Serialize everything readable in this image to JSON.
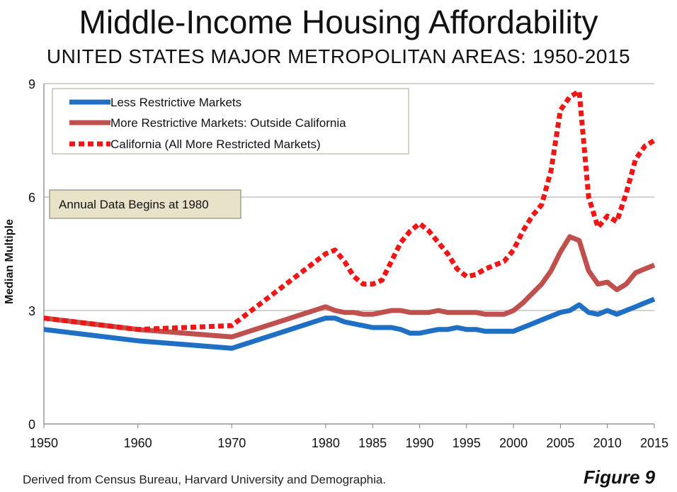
{
  "chart_data": {
    "type": "line",
    "title": "Middle-Income Housing Affordability",
    "subtitle": "UNITED STATES MAJOR METROPOLITAN AREAS: 1950-2015",
    "ylabel": "Median Multiple",
    "xlabel": "",
    "ylim": [
      0,
      9
    ],
    "yticks": [
      "0",
      "3",
      "6",
      "9"
    ],
    "xticks": [
      "1950",
      "1960",
      "1970",
      "1980",
      "1985",
      "1990",
      "1995",
      "2000",
      "2005",
      "2010",
      "2015"
    ],
    "grid": "horizontal",
    "legend_position": "top-left",
    "annotation": "Annual Data Begins at 1980",
    "source": "Derived from Census Bureau, Harvard University and Demographia.",
    "figure_label": "Figure 9",
    "series": [
      {
        "name": "Less Restrictive Markets",
        "color": "#1f6fc5",
        "style": "solid",
        "x": [
          1950,
          1960,
          1970,
          1980,
          1981,
          1982,
          1983,
          1984,
          1985,
          1986,
          1987,
          1988,
          1989,
          1990,
          1991,
          1992,
          1993,
          1994,
          1995,
          1996,
          1997,
          1998,
          1999,
          2000,
          2001,
          2002,
          2003,
          2004,
          2005,
          2006,
          2007,
          2008,
          2009,
          2010,
          2011,
          2012,
          2013,
          2014,
          2015
        ],
        "y": [
          2.5,
          2.2,
          2.0,
          2.8,
          2.8,
          2.7,
          2.65,
          2.6,
          2.55,
          2.55,
          2.55,
          2.5,
          2.4,
          2.4,
          2.45,
          2.5,
          2.5,
          2.55,
          2.5,
          2.5,
          2.45,
          2.45,
          2.45,
          2.45,
          2.55,
          2.65,
          2.75,
          2.85,
          2.95,
          3.0,
          3.15,
          2.95,
          2.9,
          3.0,
          2.9,
          3.0,
          3.1,
          3.2,
          3.3
        ]
      },
      {
        "name": "More Restrictive Markets: Outside California",
        "color": "#c0504d",
        "style": "solid",
        "x": [
          1950,
          1960,
          1970,
          1980,
          1981,
          1982,
          1983,
          1984,
          1985,
          1986,
          1987,
          1988,
          1989,
          1990,
          1991,
          1992,
          1993,
          1994,
          1995,
          1996,
          1997,
          1998,
          1999,
          2000,
          2001,
          2002,
          2003,
          2004,
          2005,
          2006,
          2007,
          2008,
          2009,
          2010,
          2011,
          2012,
          2013,
          2014,
          2015
        ],
        "y": [
          2.8,
          2.5,
          2.3,
          3.1,
          3.0,
          2.95,
          2.95,
          2.9,
          2.9,
          2.95,
          3.0,
          3.0,
          2.95,
          2.95,
          2.95,
          3.0,
          2.95,
          2.95,
          2.95,
          2.95,
          2.9,
          2.9,
          2.9,
          3.0,
          3.2,
          3.45,
          3.7,
          4.05,
          4.55,
          4.95,
          4.85,
          4.05,
          3.7,
          3.75,
          3.55,
          3.7,
          4.0,
          4.1,
          4.2
        ]
      },
      {
        "name": "California (All More Restricted Markets)",
        "color": "#f01616",
        "style": "dotted",
        "x": [
          1950,
          1960,
          1970,
          1980,
          1981,
          1982,
          1983,
          1984,
          1985,
          1986,
          1987,
          1988,
          1989,
          1990,
          1991,
          1992,
          1993,
          1994,
          1995,
          1996,
          1997,
          1998,
          1999,
          2000,
          2001,
          2002,
          2003,
          2004,
          2005,
          2006,
          2007,
          2008,
          2009,
          2010,
          2011,
          2012,
          2013,
          2014,
          2015
        ],
        "y": [
          2.8,
          2.5,
          2.6,
          4.5,
          4.6,
          4.3,
          3.9,
          3.7,
          3.7,
          3.8,
          4.3,
          4.8,
          5.1,
          5.3,
          5.1,
          4.8,
          4.5,
          4.1,
          3.9,
          3.95,
          4.1,
          4.2,
          4.3,
          4.6,
          5.1,
          5.5,
          5.8,
          6.7,
          8.3,
          8.65,
          8.8,
          6.0,
          5.2,
          5.5,
          5.35,
          6.1,
          7.0,
          7.35,
          7.5
        ]
      }
    ]
  }
}
